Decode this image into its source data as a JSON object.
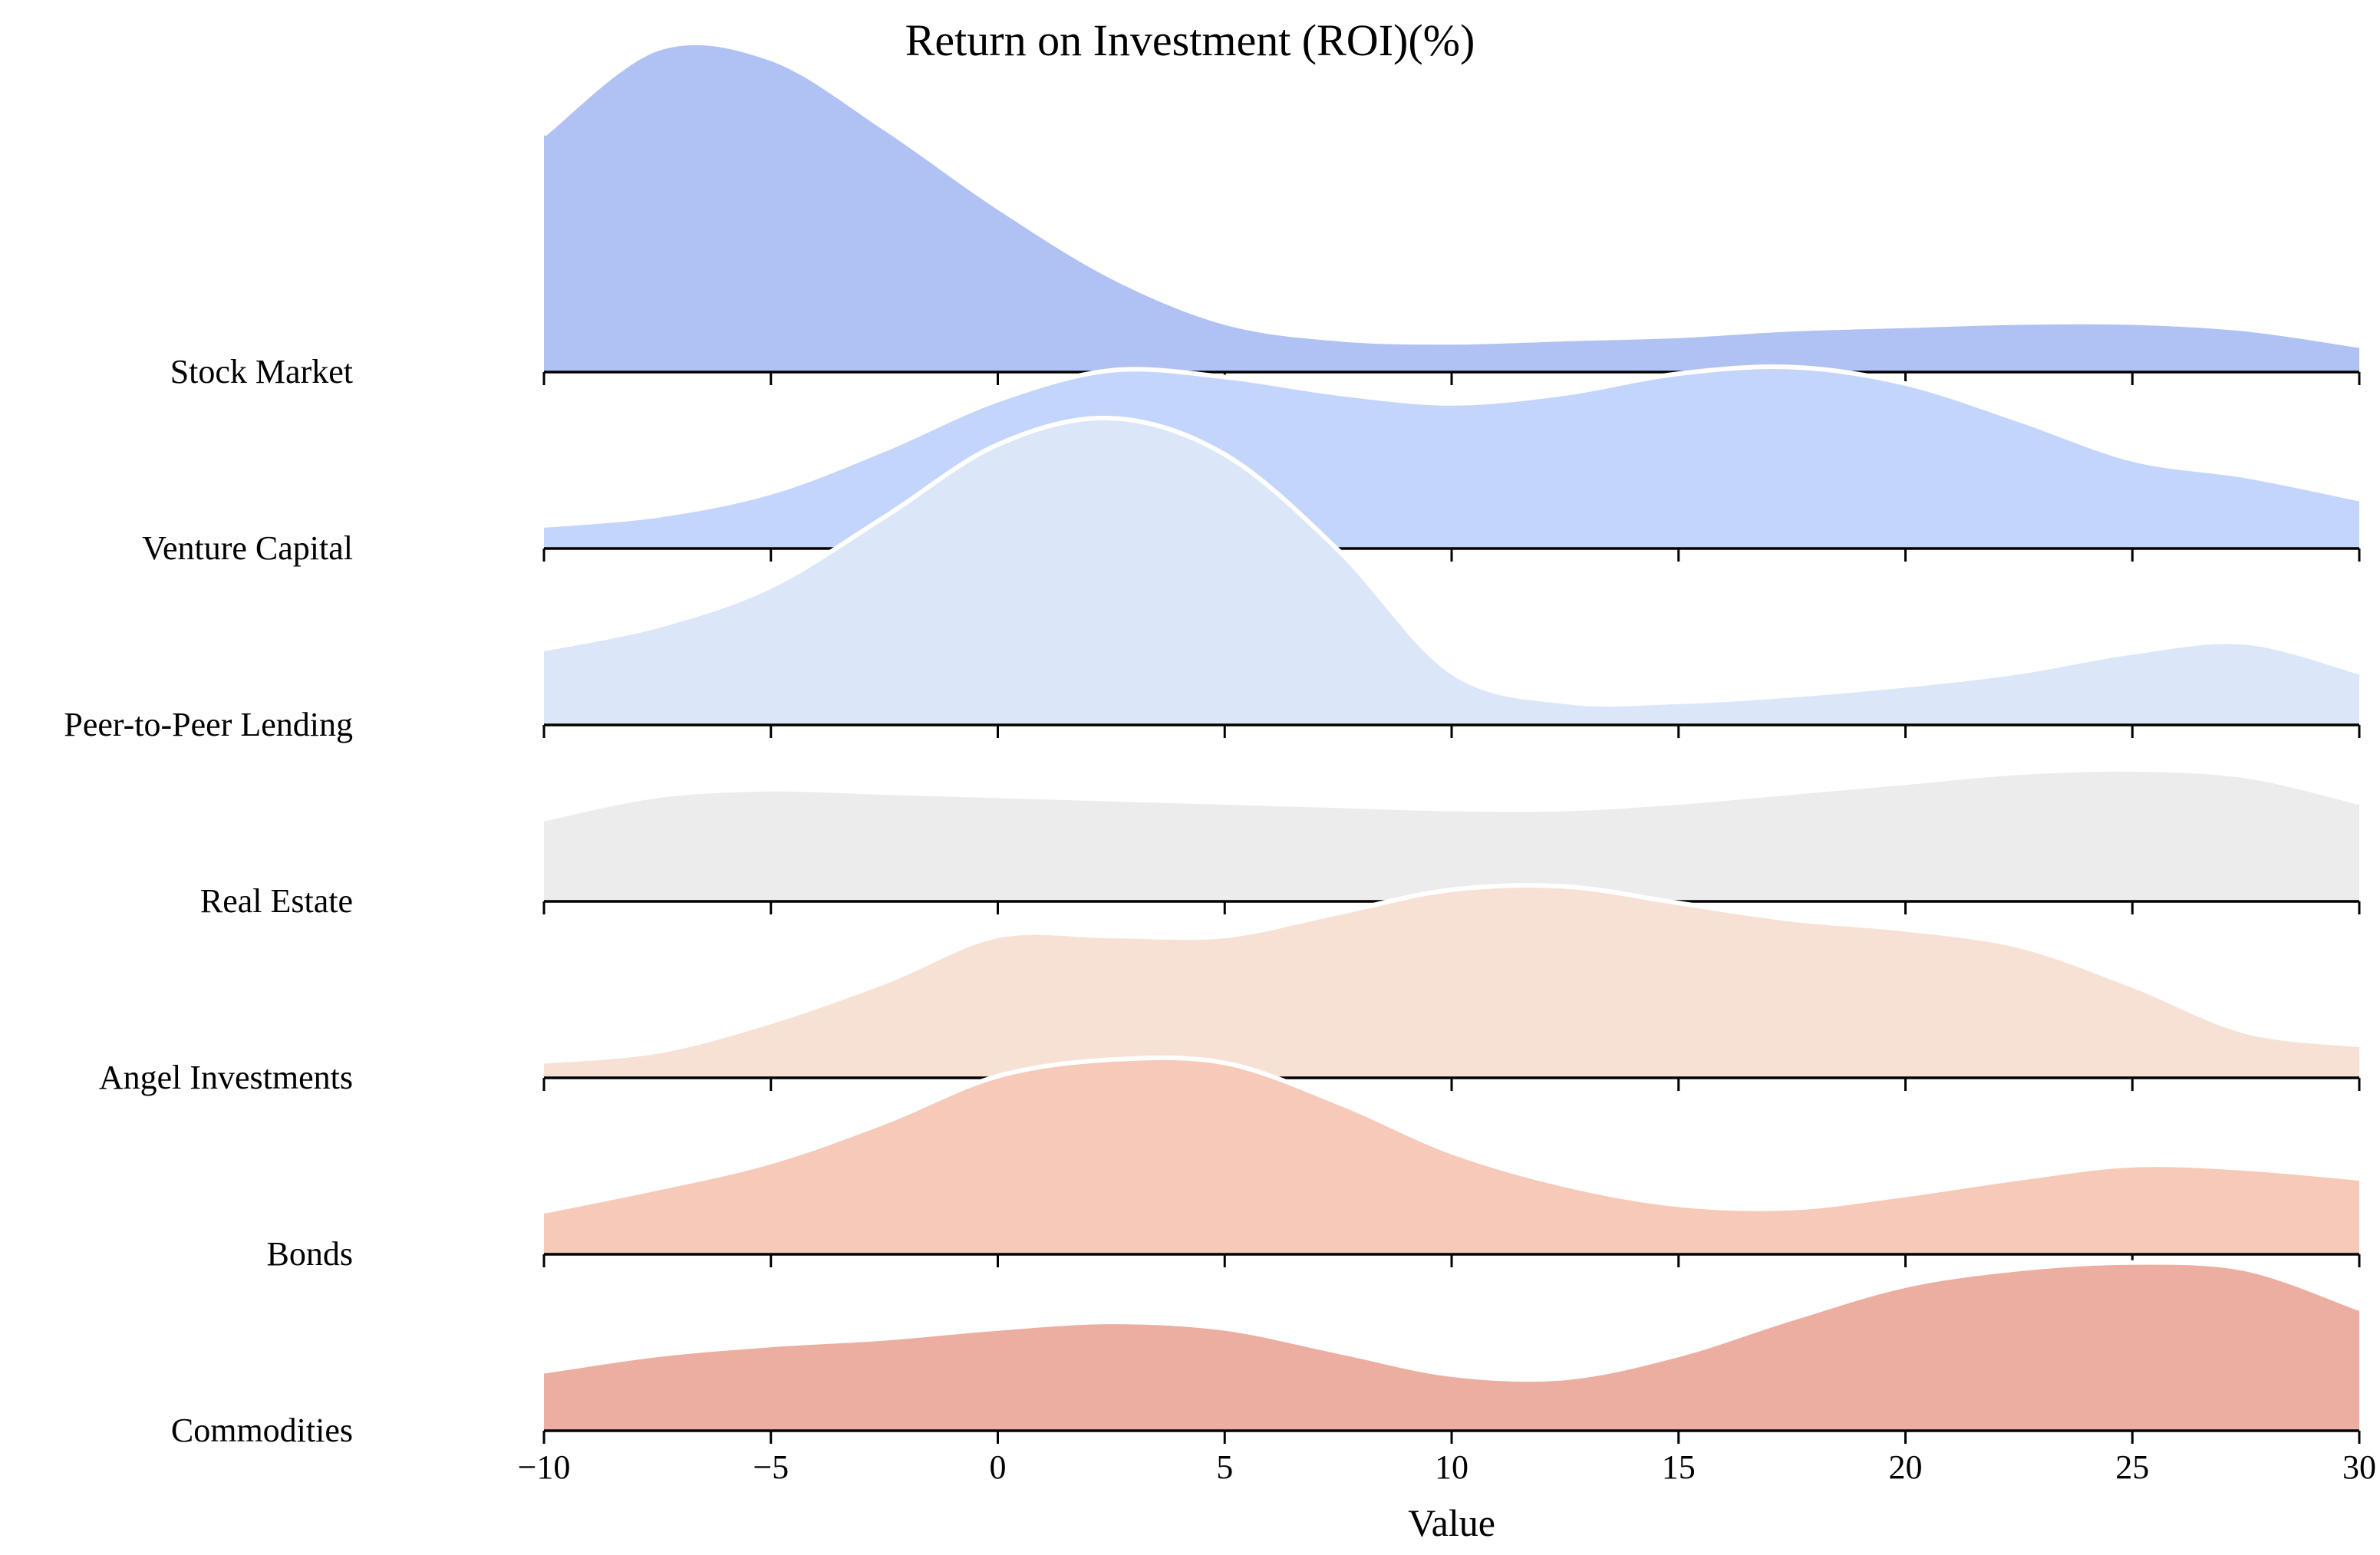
{
  "chart_data": {
    "type": "area",
    "subtype": "ridgeline",
    "title": "Return on Investment (ROI)(%)",
    "xlabel": "Value",
    "ylabel": "",
    "xlim": [
      -10,
      30
    ],
    "x_ticks": [
      -10,
      -5,
      0,
      5,
      10,
      15,
      20,
      25,
      30
    ],
    "x_tick_labels": [
      "−10",
      "−5",
      "0",
      "5",
      "10",
      "15",
      "20",
      "25",
      "30"
    ],
    "grid": false,
    "legend": false,
    "x": [
      -10,
      -7.5,
      -5,
      -2.5,
      0,
      2.5,
      5,
      7.5,
      10,
      12.5,
      15,
      17.5,
      20,
      22.5,
      25,
      27.5,
      30
    ],
    "series": [
      {
        "name": "Stock Market",
        "color": "#b0c1f3",
        "values": [
          0.72,
          0.98,
          0.95,
          0.74,
          0.5,
          0.29,
          0.15,
          0.1,
          0.09,
          0.1,
          0.11,
          0.13,
          0.14,
          0.15,
          0.15,
          0.13,
          0.08
        ]
      },
      {
        "name": "Venture Capital",
        "color": "#c4d5fc",
        "values": [
          0.07,
          0.1,
          0.17,
          0.3,
          0.45,
          0.54,
          0.52,
          0.47,
          0.44,
          0.47,
          0.53,
          0.55,
          0.5,
          0.39,
          0.27,
          0.22,
          0.15
        ]
      },
      {
        "name": "Peer-to-Peer Lending",
        "color": "#dbe6f9",
        "values": [
          0.23,
          0.3,
          0.42,
          0.63,
          0.85,
          0.93,
          0.82,
          0.53,
          0.16,
          0.07,
          0.07,
          0.09,
          0.12,
          0.16,
          0.22,
          0.25,
          0.16
        ]
      },
      {
        "name": "Real Estate",
        "color": "#ececec",
        "values": [
          0.25,
          0.32,
          0.34,
          0.33,
          0.32,
          0.31,
          0.3,
          0.29,
          0.28,
          0.28,
          0.3,
          0.33,
          0.36,
          0.39,
          0.4,
          0.38,
          0.3
        ]
      },
      {
        "name": "Angel Investments",
        "color": "#f7e1d5",
        "values": [
          0.05,
          0.08,
          0.17,
          0.29,
          0.43,
          0.43,
          0.43,
          0.5,
          0.57,
          0.58,
          0.53,
          0.48,
          0.45,
          0.4,
          0.28,
          0.14,
          0.1
        ]
      },
      {
        "name": "Bonds",
        "color": "#f7c9b8",
        "values": [
          0.13,
          0.2,
          0.28,
          0.4,
          0.54,
          0.59,
          0.58,
          0.46,
          0.31,
          0.21,
          0.15,
          0.14,
          0.18,
          0.23,
          0.27,
          0.26,
          0.23
        ]
      },
      {
        "name": "Commodities",
        "color": "#ecaea0",
        "values": [
          0.18,
          0.23,
          0.26,
          0.28,
          0.31,
          0.33,
          0.31,
          0.24,
          0.17,
          0.16,
          0.23,
          0.34,
          0.44,
          0.49,
          0.51,
          0.49,
          0.37
        ]
      }
    ]
  }
}
